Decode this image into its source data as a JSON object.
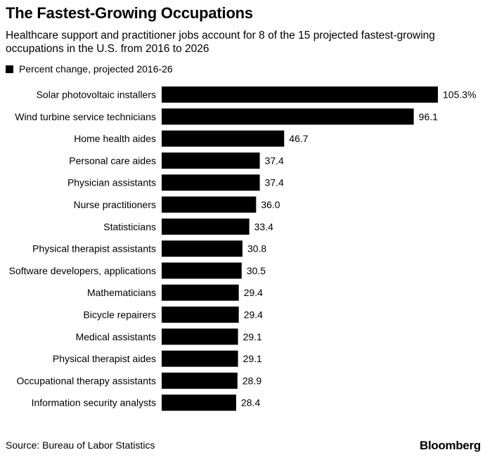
{
  "header": {
    "title": "The Fastest-Growing Occupations",
    "subtitle": "Healthcare support and practitioner jobs account for 8 of the 15 projected fastest-growing occupations in the U.S. from 2016 to 2026"
  },
  "footer": {
    "source": "Source: Bureau of Labor Statistics",
    "brand": "Bloomberg"
  },
  "colors": {
    "bar": "#000000",
    "text": "#000000",
    "background": "#ffffff"
  },
  "chart_data": {
    "type": "bar",
    "orientation": "horizontal",
    "title": "The Fastest-Growing Occupations",
    "subtitle": "Healthcare support and practitioner jobs account for 8 of the 15 projected fastest-growing occupations in the U.S. from 2016 to 2026",
    "categories": [
      "Solar photovoltaic installers",
      "Wind turbine service technicians",
      "Home health aides",
      "Personal care aides",
      "Physician assistants",
      "Nurse practitioners",
      "Statisticians",
      "Physical therapist assistants",
      "Software developers, applications",
      "Mathematicians",
      "Bicycle repairers",
      "Medical assistants",
      "Physical therapist aides",
      "Occupational therapy assistants",
      "Information security analysts"
    ],
    "series": [
      {
        "name": "Percent change, projected 2016-26",
        "values": [
          105.3,
          96.1,
          46.7,
          37.4,
          37.4,
          36.0,
          33.4,
          30.8,
          30.5,
          29.4,
          29.4,
          29.1,
          29.1,
          28.9,
          28.4
        ],
        "labels": [
          "105.3%",
          "96.1",
          "46.7",
          "37.4",
          "37.4",
          "36.0",
          "33.4",
          "30.8",
          "30.5",
          "29.4",
          "29.4",
          "29.1",
          "29.1",
          "28.9",
          "28.4"
        ]
      }
    ],
    "xlim": [
      0,
      105.3
    ],
    "grid": false,
    "legend_position": "top-left"
  }
}
